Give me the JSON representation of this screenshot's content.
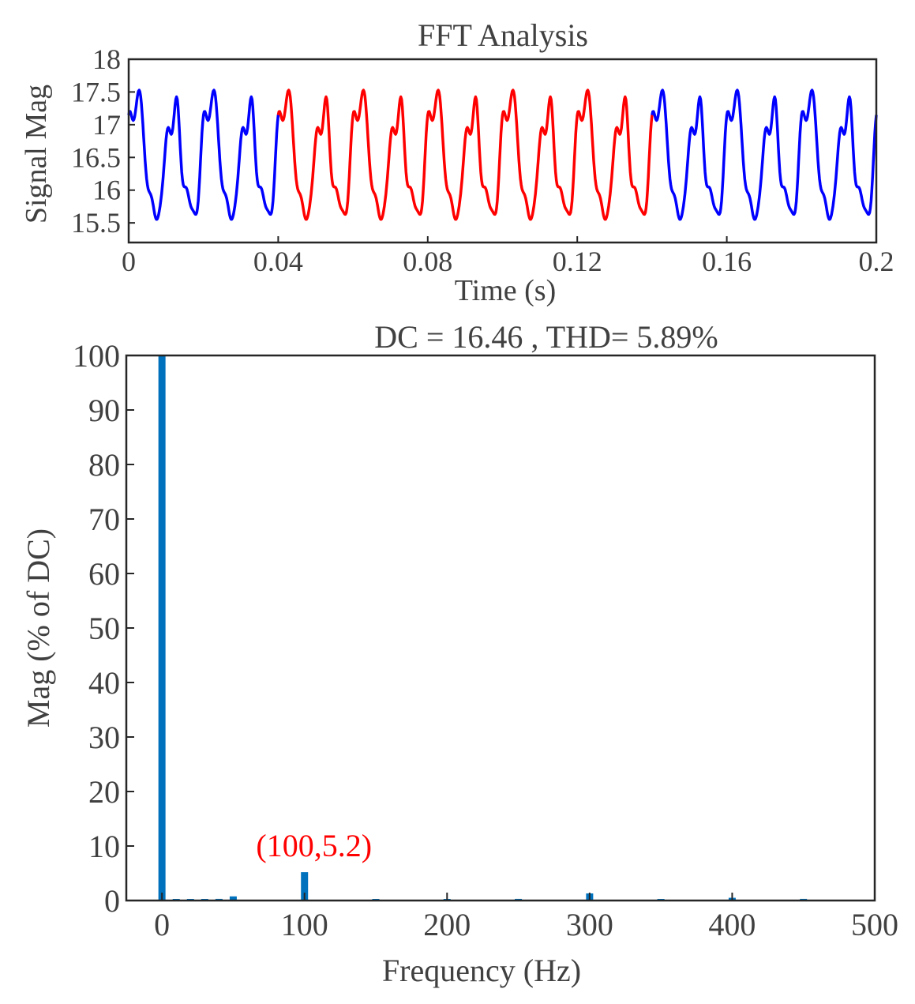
{
  "chart_data": [
    {
      "type": "line",
      "title": "FFT Analysis",
      "xlabel": "Time (s)",
      "ylabel": "Signal Mag",
      "xlim": [
        0,
        0.2
      ],
      "ylim": [
        15.2,
        18
      ],
      "xticks": [
        0,
        0.04,
        0.08,
        0.12,
        0.16,
        0.2
      ],
      "xtick_labels": [
        "0",
        "0.04",
        "0.08",
        "0.12",
        "0.16",
        "0.2"
      ],
      "yticks": [
        15.5,
        16,
        16.5,
        17,
        17.5,
        18
      ],
      "ytick_labels": [
        "15.5",
        "16",
        "16.5",
        "17",
        "17.5",
        "18"
      ],
      "signal": {
        "dc": 16.46,
        "components": [
          {
            "freq_hz": 100,
            "amp": 0.856
          },
          {
            "freq_hz": 50,
            "amp": 0.125
          },
          {
            "freq_hz": 300,
            "amp": 0.214
          },
          {
            "freq_hz": 400,
            "amp": 0.082
          },
          {
            "freq_hz": 250,
            "amp": 0.05
          },
          {
            "freq_hz": 450,
            "amp": 0.05
          }
        ]
      },
      "series": [
        {
          "color": "#0000ff",
          "x_range": [
            0,
            0.04
          ]
        },
        {
          "color": "#ff0000",
          "x_range": [
            0.04,
            0.14
          ]
        },
        {
          "color": "#0000ff",
          "x_range": [
            0.14,
            0.2
          ]
        }
      ],
      "grid": false
    },
    {
      "type": "bar",
      "title": "DC = 16.46 , THD= 5.89%",
      "xlabel": "Frequency (Hz)",
      "ylabel": "Mag (% of DC)",
      "xlim": [
        -25,
        500
      ],
      "ylim": [
        0,
        100
      ],
      "xticks": [
        0,
        100,
        200,
        300,
        400,
        500
      ],
      "xtick_labels": [
        "0",
        "100",
        "200",
        "300",
        "400",
        "500"
      ],
      "yticks": [
        0,
        10,
        20,
        30,
        40,
        50,
        60,
        70,
        80,
        90,
        100
      ],
      "ytick_labels": [
        "0",
        "10",
        "20",
        "30",
        "40",
        "50",
        "60",
        "70",
        "80",
        "90",
        "100"
      ],
      "x": [
        0,
        10,
        20,
        30,
        40,
        50,
        100,
        150,
        200,
        250,
        300,
        350,
        400,
        450
      ],
      "values": [
        100,
        0.2,
        0.1,
        0.2,
        0.3,
        0.76,
        5.2,
        0.1,
        0.1,
        0.3,
        1.3,
        0.1,
        0.5,
        0.3
      ],
      "bar_color": "#0072bd",
      "annotation": {
        "text": "(100,5.2)",
        "x": 100,
        "y": 5.2,
        "color": "#ff0000"
      },
      "grid": false
    }
  ]
}
